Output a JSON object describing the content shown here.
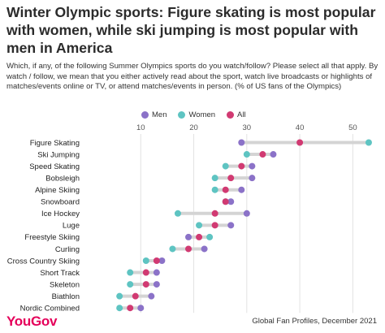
{
  "header": {
    "title": "Winter Olympic sports: Figure skating is most popular with women, while ski jumping is most popular with men in America",
    "subtitle": "Which, if any, of the following Summer Olympics sports do you watch/follow? Please select all that apply. By watch / follow, we mean that you either actively read about the sport, watch live broadcasts or highlights of matches/events online or TV, or attend matches/events in person. (% of US fans of the Olympics)"
  },
  "legend": {
    "items": [
      {
        "label": "Men",
        "color": "#8b72c8"
      },
      {
        "label": "Women",
        "color": "#5ec4c2"
      },
      {
        "label": "All",
        "color": "#d13a72"
      }
    ]
  },
  "footer": {
    "logo": "YouGov",
    "source": "Global Fan Profiles, December 2021"
  },
  "chart_data": {
    "type": "dot",
    "xlim": [
      0,
      55
    ],
    "xticks": [
      10,
      20,
      30,
      40,
      50
    ],
    "grid": true,
    "legend_position": "top",
    "categories": [
      "Figure Skating",
      "Ski Jumping",
      "Speed Skating",
      "Bobsleigh",
      "Alpine Skiing",
      "Snowboard",
      "Ice Hockey",
      "Luge",
      "Freestyle Skiing",
      "Curling",
      "Cross Country Skiing",
      "Short Track",
      "Skeleton",
      "Biathlon",
      "Nordic Combined"
    ],
    "series": [
      {
        "name": "Men",
        "color": "#8b72c8",
        "values": [
          29,
          35,
          31,
          31,
          29,
          27,
          30,
          27,
          19,
          22,
          14,
          13,
          13,
          12,
          10
        ]
      },
      {
        "name": "Women",
        "color": "#5ec4c2",
        "values": [
          53,
          30,
          26,
          24,
          24,
          26,
          17,
          21,
          23,
          16,
          11,
          8,
          8,
          6,
          6
        ]
      },
      {
        "name": "All",
        "color": "#d13a72",
        "values": [
          40,
          33,
          29,
          27,
          26,
          26,
          24,
          24,
          21,
          19,
          13,
          11,
          11,
          9,
          8
        ]
      }
    ]
  }
}
